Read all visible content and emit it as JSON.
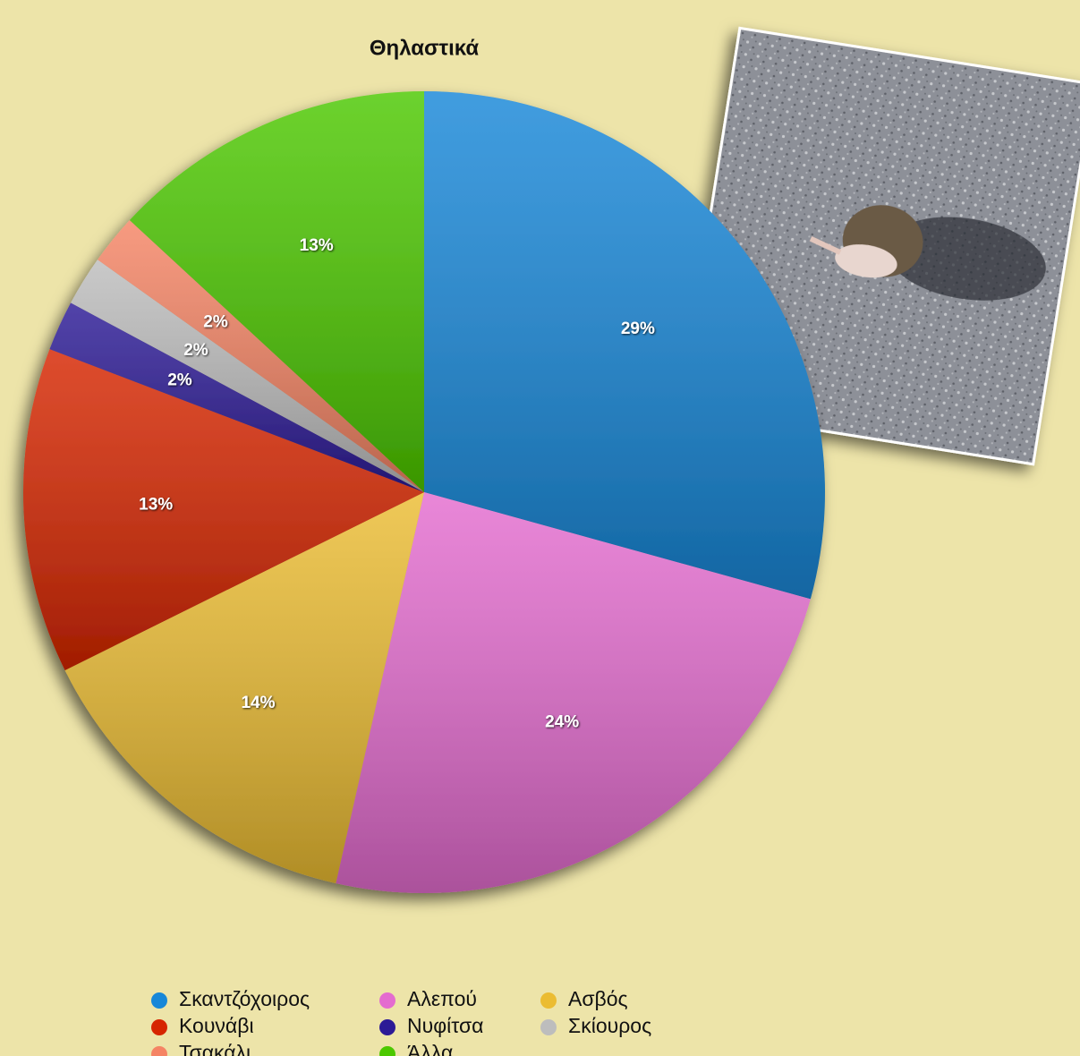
{
  "chart_data": {
    "type": "pie",
    "title": "Θηλαστικά",
    "categories": [
      "Σκαντζόχοιρος",
      "Αλεπού",
      "Ασβός",
      "Κουνάβι",
      "Νυφίτσα",
      "Σκίουρος",
      "Τσακάλι",
      "Άλλα"
    ],
    "values": [
      29,
      24,
      14,
      13,
      2,
      2,
      2,
      13
    ],
    "value_labels": [
      "29%",
      "24%",
      "14%",
      "13%",
      "2%",
      "2%",
      "2%",
      "13%"
    ],
    "colors": [
      "#1787d8",
      "#e46ccf",
      "#ebbc32",
      "#d62500",
      "#2c1a96",
      "#bdbdbd",
      "#f58464",
      "#4cc800"
    ]
  }
}
